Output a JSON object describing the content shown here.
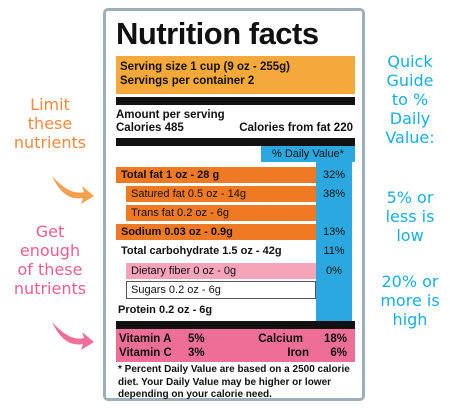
{
  "left_notes": {
    "limit": [
      "Limit",
      "these",
      "nutrients"
    ],
    "get": [
      "Get",
      "enough",
      "of these",
      "nutrients"
    ]
  },
  "right_notes": {
    "guide": [
      "Quick",
      "Guide",
      "to %",
      "Daily",
      "Value:"
    ],
    "low": [
      "5% or",
      "less is",
      "low"
    ],
    "high": [
      "20% or",
      "more is",
      "high"
    ]
  },
  "label": {
    "title": "Nutrition facts",
    "serving_size": "Serving size 1 cup (9 oz - 255g)",
    "servings_per_container": "Servings per container 2",
    "amount_per_serving": "Amount per serving",
    "calories": "Calories 485",
    "calories_from_fat": "Calories from fat 220",
    "dv_header": "% Daily Value*",
    "nutrients": {
      "total_fat": {
        "label": "Total fat 1 oz - 28 g",
        "pct": "32%"
      },
      "saturated_fat": {
        "label": "Satured fat 0.5 oz - 14g",
        "pct": "38%"
      },
      "trans_fat": {
        "label": "Trans fat 0.2 oz - 6g",
        "pct": ""
      },
      "sodium": {
        "label": "Sodium 0.03 oz - 0.9g",
        "pct": "13%"
      },
      "total_carb": {
        "label": "Total carbohydrate 1.5 oz - 42g",
        "pct": "11%"
      },
      "fiber": {
        "label": "Dietary fiber 0 oz - 0g",
        "pct": "0%"
      },
      "sugars": {
        "label": "Sugars 0.2 oz - 6g",
        "pct": ""
      },
      "protein": {
        "label": "Protein 0.2 oz - 6g",
        "pct": ""
      }
    },
    "vitamins": {
      "vitamin_a": "Vitamin A",
      "vitamin_a_pct": "5%",
      "calcium": "Calcium",
      "calcium_pct": "18%",
      "vitamin_c": "Vitamin C",
      "vitamin_c_pct": "3%",
      "iron": "Iron",
      "iron_pct": "6%"
    },
    "footnote": "* Percent Daily Value are based on a 2500 calorie diet. Your Daily Value may be higher or lower depending on your calorie need."
  },
  "colors": {
    "orange_note": "#ee8a3c",
    "pink_note": "#ea5f8a",
    "blue_note": "#17aee0",
    "serving_bg": "#f6a93b",
    "fat_bg": "#f07a24",
    "fiber_bg": "#f5a4b9",
    "vitamin_bg": "#ed6f98",
    "dv_blue": "#2ba8e0",
    "border": "#9eb0b7"
  }
}
